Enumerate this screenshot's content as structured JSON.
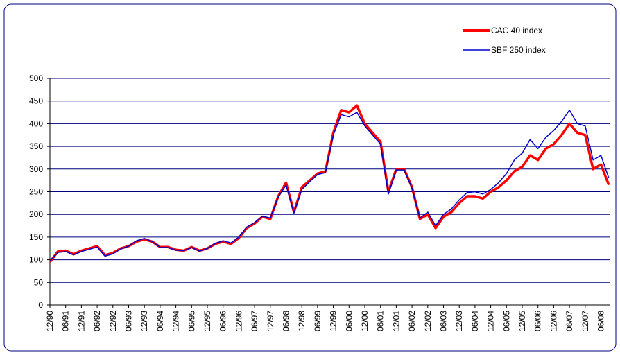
{
  "chart_data": {
    "type": "line",
    "categories": [
      "12/90",
      null,
      "06/91",
      null,
      "12/91",
      null,
      "06/92",
      null,
      "12/92",
      null,
      "06/93",
      null,
      "12/93",
      null,
      "06/94",
      null,
      "12/94",
      null,
      "06/95",
      null,
      "12/95",
      null,
      "06/96",
      null,
      "12/96",
      null,
      "06/97",
      null,
      "12/97",
      null,
      "06/98",
      null,
      "12/98",
      null,
      "06/99",
      null,
      "12/99",
      null,
      "06/00",
      null,
      "12/00",
      null,
      "06/01",
      null,
      "12/01",
      null,
      "06/02",
      null,
      "12/02",
      null,
      "06/03",
      null,
      "12/03",
      null,
      "06/04",
      null,
      "12/04",
      null,
      "06/05",
      null,
      "12/05",
      null,
      "06/06",
      null,
      "12/06",
      null,
      "06/07",
      null,
      "12/07",
      null,
      "06/08",
      null
    ],
    "series": [
      {
        "name": "CAC 40 index",
        "color": "#ff0000",
        "values": [
          95,
          118,
          120,
          112,
          120,
          125,
          130,
          110,
          115,
          125,
          130,
          140,
          145,
          140,
          128,
          128,
          122,
          120,
          128,
          120,
          125,
          135,
          140,
          135,
          148,
          170,
          180,
          195,
          190,
          240,
          270,
          205,
          260,
          275,
          290,
          295,
          380,
          430,
          425,
          440,
          400,
          380,
          360,
          250,
          300,
          300,
          260,
          190,
          200,
          170,
          195,
          205,
          225,
          240,
          240,
          235,
          250,
          260,
          275,
          295,
          305,
          330,
          320,
          345,
          355,
          375,
          400,
          380,
          375,
          300,
          310,
          265
        ]
      },
      {
        "name": "SBF 250 index",
        "color": "#0000cc",
        "values": [
          97,
          116,
          118,
          111,
          118,
          123,
          128,
          108,
          113,
          124,
          130,
          142,
          147,
          140,
          127,
          127,
          121,
          120,
          127,
          119,
          125,
          136,
          142,
          137,
          150,
          172,
          182,
          196,
          192,
          238,
          265,
          203,
          255,
          272,
          288,
          292,
          375,
          420,
          415,
          425,
          395,
          375,
          355,
          245,
          298,
          298,
          258,
          192,
          205,
          175,
          200,
          212,
          232,
          248,
          250,
          245,
          255,
          270,
          290,
          320,
          335,
          365,
          345,
          370,
          385,
          405,
          430,
          400,
          395,
          320,
          330,
          280
        ]
      }
    ],
    "legend": "top-right",
    "ylim": [
      0,
      500
    ],
    "yticks": [
      0,
      50,
      100,
      150,
      200,
      250,
      300,
      350,
      400,
      450,
      500
    ],
    "grid": true
  }
}
